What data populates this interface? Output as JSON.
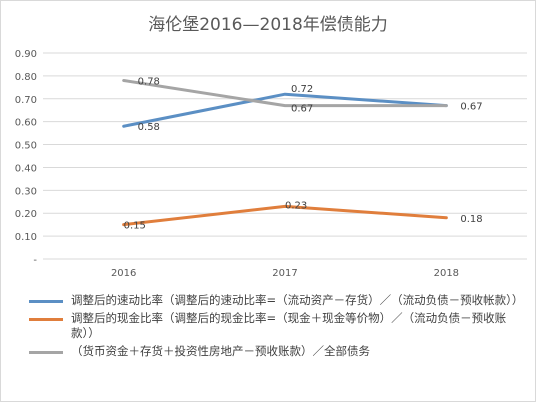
{
  "chart_data": {
    "type": "line",
    "title": "海伦堡2016—2018年偿债能力",
    "xlabel": "",
    "ylabel": "",
    "categories": [
      "2016",
      "2017",
      "2018"
    ],
    "ylim": [
      0,
      0.9
    ],
    "yticks": [
      "0.90",
      "0.80",
      "0.70",
      "0.60",
      "0.50",
      "0.40",
      "0.30",
      "0.20",
      "0.10",
      "-"
    ],
    "grid": true,
    "legend_position": "bottom",
    "series": [
      {
        "name": "调整后的速动比率（调整后的速动比率=（流动资产－存货）／（流动负债－预收帐款））",
        "values": [
          0.58,
          0.72,
          0.67
        ],
        "labels": [
          "0.58",
          "0.72",
          "0.67"
        ],
        "color": "#5b8fc4"
      },
      {
        "name": "调整后的现金比率（调整后的现金比率=（现金＋现金等价物）／（流动负债－预收账款））",
        "values": [
          0.15,
          0.23,
          0.18
        ],
        "labels": [
          "0.15",
          "0.23",
          "0.18"
        ],
        "color": "#e07e3c"
      },
      {
        "name": "（货币资金＋存货＋投资性房地产－预收账款）／全部债务",
        "values": [
          0.78,
          0.67,
          0.67
        ],
        "labels": [
          "0.78",
          "0.67",
          ""
        ],
        "color": "#a5a5a5"
      }
    ]
  }
}
